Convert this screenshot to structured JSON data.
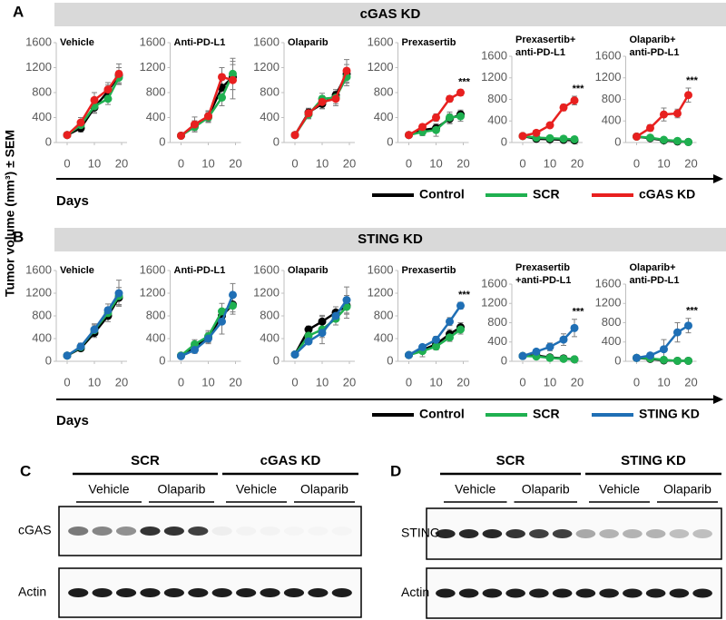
{
  "panel_labels": [
    "A",
    "B",
    "C",
    "D"
  ],
  "section_titles": [
    "cGAS KD",
    "STING KD"
  ],
  "y_axis_label": "Tumor volume (mm³) ± SEM",
  "x_axis_labels": [
    "Days",
    "Days"
  ],
  "chart_data": [
    {
      "type": "line",
      "title": [
        "Vehicle"
      ],
      "x": [
        0,
        5,
        10,
        15,
        19
      ],
      "xlim": [
        -4,
        22
      ],
      "xticks": [
        0,
        10,
        20
      ],
      "ylim": [
        0,
        1600
      ],
      "yticks": [
        0,
        400,
        800,
        1200,
        1600
      ],
      "series": [
        {
          "name": "Control",
          "color": "#000000",
          "values": [
            120,
            230,
            560,
            820,
            1080
          ],
          "errors": [
            20,
            60,
            90,
            100,
            120
          ]
        },
        {
          "name": "SCR",
          "color": "#1fb050",
          "values": [
            120,
            280,
            580,
            700,
            1040
          ],
          "errors": [
            20,
            70,
            100,
            90,
            110
          ]
        },
        {
          "name": "cGAS KD",
          "color": "#e8201f",
          "values": [
            120,
            320,
            680,
            850,
            1100
          ],
          "errors": [
            20,
            80,
            120,
            110,
            160
          ]
        }
      ]
    },
    {
      "type": "line",
      "title": [
        "Anti-PD-L1"
      ],
      "x": [
        0,
        5,
        10,
        15,
        19
      ],
      "xlim": [
        -4,
        22
      ],
      "xticks": [
        0,
        10,
        20
      ],
      "ylim": [
        0,
        1600
      ],
      "yticks": [
        0,
        400,
        800,
        1200,
        1600
      ],
      "series": [
        {
          "name": "Control",
          "color": "#000000",
          "values": [
            110,
            280,
            420,
            880,
            1050
          ],
          "errors": [
            20,
            70,
            80,
            120,
            200
          ]
        },
        {
          "name": "SCR",
          "color": "#1fb050",
          "values": [
            110,
            250,
            400,
            720,
            1100
          ],
          "errors": [
            20,
            60,
            80,
            130,
            250
          ]
        },
        {
          "name": "cGAS KD",
          "color": "#e8201f",
          "values": [
            110,
            290,
            420,
            1050,
            1000
          ],
          "errors": [
            20,
            120,
            90,
            150,
            300
          ]
        }
      ]
    },
    {
      "type": "line",
      "title": [
        "Olaparib"
      ],
      "x": [
        0,
        5,
        10,
        15,
        19
      ],
      "xlim": [
        -4,
        22
      ],
      "xticks": [
        0,
        10,
        20
      ],
      "ylim": [
        0,
        1600
      ],
      "yticks": [
        0,
        400,
        800,
        1200,
        1600
      ],
      "series": [
        {
          "name": "Control",
          "color": "#000000",
          "values": [
            120,
            480,
            620,
            760,
            1100
          ],
          "errors": [
            20,
            60,
            80,
            90,
            150
          ]
        },
        {
          "name": "SCR",
          "color": "#1fb050",
          "values": [
            120,
            450,
            700,
            720,
            1050
          ],
          "errors": [
            20,
            70,
            90,
            100,
            140
          ]
        },
        {
          "name": "cGAS KD",
          "color": "#e8201f",
          "values": [
            120,
            470,
            650,
            700,
            1150
          ],
          "errors": [
            20,
            80,
            100,
            110,
            180
          ]
        }
      ]
    },
    {
      "type": "line",
      "title": [
        "Prexasertib"
      ],
      "x": [
        0,
        5,
        10,
        15,
        19
      ],
      "xlim": [
        -4,
        22
      ],
      "xticks": [
        0,
        10,
        20
      ],
      "ylim": [
        0,
        1600
      ],
      "yticks": [
        0,
        400,
        800,
        1200,
        1600
      ],
      "annotation": "***",
      "series": [
        {
          "name": "Control",
          "color": "#000000",
          "values": [
            120,
            200,
            230,
            380,
            450
          ],
          "errors": [
            20,
            50,
            60,
            80,
            70
          ]
        },
        {
          "name": "SCR",
          "color": "#1fb050",
          "values": [
            120,
            170,
            200,
            400,
            420
          ],
          "errors": [
            20,
            60,
            100,
            90,
            80
          ]
        },
        {
          "name": "cGAS KD",
          "color": "#e8201f",
          "values": [
            120,
            250,
            400,
            700,
            800
          ],
          "errors": [
            20,
            40,
            60,
            50,
            50
          ]
        }
      ]
    },
    {
      "type": "line",
      "title": [
        "Prexasertib+",
        "anti-PD-L1"
      ],
      "x": [
        0,
        5,
        10,
        15,
        19
      ],
      "xlim": [
        -4,
        22
      ],
      "xticks": [
        0,
        10,
        20
      ],
      "ylim": [
        0,
        1600
      ],
      "yticks": [
        0,
        400,
        800,
        1200,
        1600
      ],
      "annotation": "***",
      "series": [
        {
          "name": "Control",
          "color": "#000000",
          "values": [
            120,
            70,
            60,
            50,
            40
          ],
          "errors": [
            20,
            20,
            20,
            15,
            10
          ]
        },
        {
          "name": "SCR",
          "color": "#1fb050",
          "values": [
            120,
            90,
            80,
            70,
            60
          ],
          "errors": [
            20,
            20,
            20,
            15,
            10
          ]
        },
        {
          "name": "cGAS KD",
          "color": "#e8201f",
          "values": [
            120,
            180,
            320,
            650,
            780
          ],
          "errors": [
            20,
            40,
            50,
            60,
            80
          ]
        }
      ]
    },
    {
      "type": "line",
      "title": [
        "Olaparib+",
        "anti-PD-L1"
      ],
      "x": [
        0,
        5,
        10,
        15,
        19
      ],
      "xlim": [
        -4,
        22
      ],
      "xticks": [
        0,
        10,
        20
      ],
      "ylim": [
        0,
        1600
      ],
      "yticks": [
        0,
        400,
        800,
        1200,
        1600
      ],
      "annotation": "***",
      "series": [
        {
          "name": "Control",
          "color": "#000000",
          "values": [
            110,
            80,
            40,
            20,
            10
          ],
          "errors": [
            20,
            20,
            15,
            10,
            5
          ]
        },
        {
          "name": "SCR",
          "color": "#1fb050",
          "values": [
            110,
            90,
            50,
            30,
            10
          ],
          "errors": [
            20,
            20,
            15,
            10,
            5
          ]
        },
        {
          "name": "cGAS KD",
          "color": "#e8201f",
          "values": [
            110,
            270,
            520,
            540,
            880
          ],
          "errors": [
            20,
            60,
            120,
            80,
            130
          ]
        }
      ]
    },
    {
      "type": "line",
      "title": [
        "Vehicle"
      ],
      "x": [
        0,
        5,
        10,
        15,
        19
      ],
      "xlim": [
        -4,
        22
      ],
      "xticks": [
        0,
        10,
        20
      ],
      "ylim": [
        0,
        1600
      ],
      "yticks": [
        0,
        400,
        800,
        1200,
        1600
      ],
      "series": [
        {
          "name": "Control",
          "color": "#000000",
          "values": [
            100,
            230,
            500,
            800,
            1120
          ],
          "errors": [
            20,
            50,
            80,
            100,
            130
          ]
        },
        {
          "name": "SCR",
          "color": "#1fb050",
          "values": [
            100,
            250,
            550,
            850,
            1150
          ],
          "errors": [
            20,
            60,
            90,
            100,
            150
          ]
        },
        {
          "name": "STING KD",
          "color": "#1f6fb5",
          "values": [
            100,
            260,
            560,
            900,
            1200
          ],
          "errors": [
            20,
            60,
            100,
            110,
            230
          ]
        }
      ]
    },
    {
      "type": "line",
      "title": [
        "Anti-PD-L1"
      ],
      "x": [
        0,
        5,
        10,
        15,
        19
      ],
      "xlim": [
        -4,
        22
      ],
      "xticks": [
        0,
        10,
        20
      ],
      "ylim": [
        0,
        1600
      ],
      "yticks": [
        0,
        400,
        800,
        1200,
        1600
      ],
      "series": [
        {
          "name": "Control",
          "color": "#000000",
          "values": [
            100,
            250,
            420,
            800,
            1000
          ],
          "errors": [
            20,
            80,
            90,
            120,
            130
          ]
        },
        {
          "name": "SCR",
          "color": "#1fb050",
          "values": [
            100,
            300,
            440,
            880,
            980
          ],
          "errors": [
            20,
            80,
            100,
            140,
            150
          ]
        },
        {
          "name": "STING KD",
          "color": "#1f6fb5",
          "values": [
            90,
            200,
            400,
            700,
            1170
          ],
          "errors": [
            20,
            60,
            90,
            220,
            200
          ]
        }
      ]
    },
    {
      "type": "line",
      "title": [
        "Olaparib"
      ],
      "x": [
        0,
        5,
        10,
        15,
        19
      ],
      "xlim": [
        -4,
        22
      ],
      "xticks": [
        0,
        10,
        20
      ],
      "ylim": [
        0,
        1600
      ],
      "yticks": [
        0,
        400,
        800,
        1200,
        1600
      ],
      "series": [
        {
          "name": "Control",
          "color": "#000000",
          "values": [
            120,
            560,
            700,
            860,
            980
          ],
          "errors": [
            20,
            60,
            90,
            100,
            150
          ]
        },
        {
          "name": "SCR",
          "color": "#1fb050",
          "values": [
            120,
            450,
            560,
            750,
            960
          ],
          "errors": [
            20,
            60,
            250,
            110,
            200
          ]
        },
        {
          "name": "STING KD",
          "color": "#1f6fb5",
          "values": [
            120,
            350,
            500,
            800,
            1080
          ],
          "errors": [
            20,
            50,
            80,
            100,
            230
          ]
        }
      ]
    },
    {
      "type": "line",
      "title": [
        "Prexasertib"
      ],
      "x": [
        0,
        5,
        10,
        15,
        19
      ],
      "xlim": [
        -4,
        22
      ],
      "xticks": [
        0,
        10,
        20
      ],
      "ylim": [
        0,
        1600
      ],
      "yticks": [
        0,
        400,
        800,
        1200,
        1600
      ],
      "annotation": "***",
      "series": [
        {
          "name": "Control",
          "color": "#000000",
          "values": [
            110,
            200,
            300,
            480,
            600
          ],
          "errors": [
            20,
            50,
            60,
            80,
            80
          ]
        },
        {
          "name": "SCR",
          "color": "#1fb050",
          "values": [
            110,
            180,
            260,
            420,
            560
          ],
          "errors": [
            20,
            100,
            60,
            70,
            80
          ]
        },
        {
          "name": "STING KD",
          "color": "#1f6fb5",
          "values": [
            110,
            250,
            380,
            700,
            980
          ],
          "errors": [
            20,
            40,
            60,
            70,
            60
          ]
        }
      ]
    },
    {
      "type": "line",
      "title": [
        "Prexasertib",
        "+anti-PD-L1"
      ],
      "x": [
        0,
        5,
        10,
        15,
        19
      ],
      "xlim": [
        -4,
        22
      ],
      "xticks": [
        0,
        10,
        20
      ],
      "ylim": [
        0,
        1600
      ],
      "yticks": [
        0,
        400,
        800,
        1200,
        1600
      ],
      "annotation": "***",
      "series": [
        {
          "name": "Control",
          "color": "#000000",
          "values": [
            110,
            120,
            80,
            60,
            40
          ],
          "errors": [
            20,
            20,
            20,
            15,
            10
          ]
        },
        {
          "name": "SCR",
          "color": "#1fb050",
          "values": [
            110,
            100,
            70,
            50,
            40
          ],
          "errors": [
            20,
            20,
            20,
            15,
            10
          ]
        },
        {
          "name": "STING KD",
          "color": "#1f6fb5",
          "values": [
            110,
            200,
            300,
            450,
            690
          ],
          "errors": [
            20,
            50,
            80,
            120,
            180
          ]
        }
      ]
    },
    {
      "type": "line",
      "title": [
        "Olaparib+",
        "anti-PD-L1"
      ],
      "x": [
        0,
        5,
        10,
        15,
        19
      ],
      "xlim": [
        -4,
        22
      ],
      "xticks": [
        0,
        10,
        20
      ],
      "ylim": [
        0,
        1600
      ],
      "yticks": [
        0,
        400,
        800,
        1200,
        1600
      ],
      "annotation": "***",
      "series": [
        {
          "name": "Control",
          "color": "#000000",
          "values": [
            70,
            50,
            20,
            10,
            10
          ],
          "errors": [
            20,
            15,
            10,
            5,
            5
          ]
        },
        {
          "name": "SCR",
          "color": "#1fb050",
          "values": [
            70,
            60,
            30,
            10,
            10
          ],
          "errors": [
            20,
            15,
            10,
            5,
            5
          ]
        },
        {
          "name": "STING KD",
          "color": "#1f6fb5",
          "values": [
            70,
            120,
            250,
            600,
            740
          ],
          "errors": [
            20,
            60,
            200,
            200,
            150
          ]
        }
      ]
    }
  ],
  "blots": [
    {
      "groups": [
        "SCR",
        "cGAS KD"
      ],
      "treatments": [
        "Vehicle",
        "Olaparib",
        "Vehicle",
        "Olaparib"
      ],
      "rows": [
        "cGAS",
        "Actin"
      ]
    },
    {
      "groups": [
        "SCR",
        "STING KD"
      ],
      "treatments": [
        "Vehicle",
        "Olaparib",
        "Vehicle",
        "Olaparib"
      ],
      "rows": [
        "STING",
        "Actin"
      ]
    }
  ]
}
